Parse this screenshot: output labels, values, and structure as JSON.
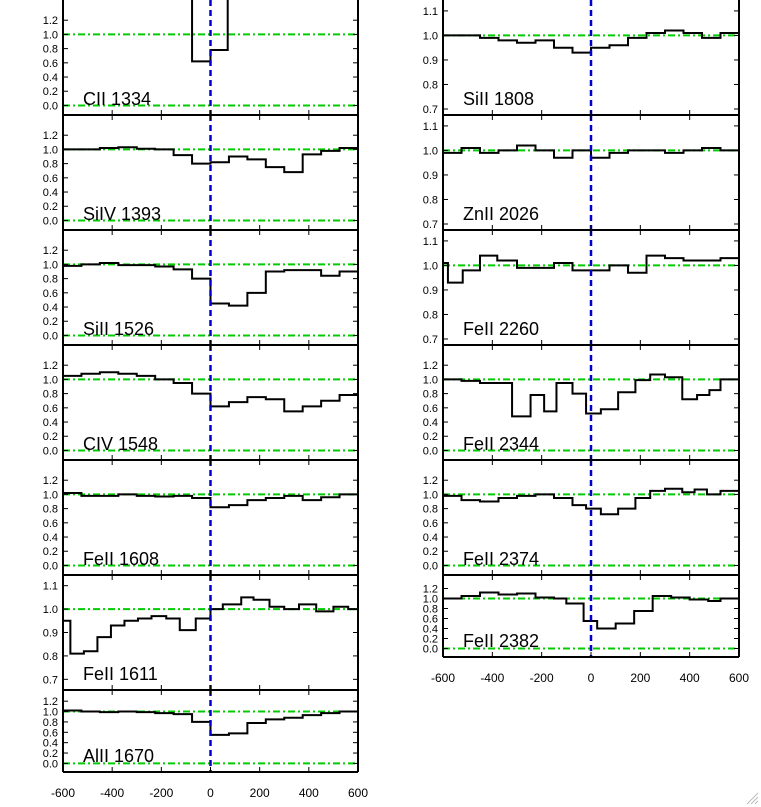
{
  "chart_data": {
    "type": "line",
    "style": {
      "spectrum_color": "#000000",
      "unity_line_color": "#00cc00",
      "zero_line_color": "#00cc00",
      "velocity_zero_color": "#0000cc"
    },
    "x_ticks": [
      "-600",
      "-400",
      "-200",
      "0",
      "200",
      "400",
      "600"
    ],
    "xlim": [
      -600,
      600
    ],
    "columns": [
      {
        "panels": [
          {
            "label": "CII 1334",
            "ylim": [
              -0.05,
              1.4
            ],
            "yticks": [
              "0.0",
              "0.2",
              "0.4",
              "0.6",
              "0.8",
              "1.0",
              "1.2"
            ],
            "unity": 1.0,
            "zero": 0.0,
            "x": [
              -75,
              -75,
              0,
              0,
              70,
              70
            ],
            "y": [
              1.5,
              0.62,
              0.62,
              0.78,
              0.78,
              1.5
            ]
          },
          {
            "label": "SiIV 1393",
            "ylim": [
              -0.05,
              1.4
            ],
            "yticks": [
              "0.0",
              "0.2",
              "0.4",
              "0.6",
              "0.8",
              "1.0",
              "1.2"
            ],
            "unity": 1.0,
            "zero": 0.0,
            "x": [
              -600,
              -525,
              -450,
              -375,
              -300,
              -225,
              -150,
              -75,
              0,
              75,
              150,
              225,
              300,
              375,
              450,
              525
            ],
            "y": [
              1.0,
              1.0,
              1.02,
              1.03,
              1.01,
              1.0,
              0.92,
              0.8,
              0.82,
              0.9,
              0.86,
              0.75,
              0.68,
              0.93,
              0.98,
              1.02
            ]
          },
          {
            "label": "SiII 1526",
            "ylim": [
              -0.05,
              1.4
            ],
            "yticks": [
              "0.0",
              "0.2",
              "0.4",
              "0.6",
              "0.8",
              "1.0",
              "1.2"
            ],
            "unity": 1.0,
            "zero": 0.0,
            "x": [
              -600,
              -525,
              -450,
              -375,
              -300,
              -225,
              -150,
              -75,
              0,
              75,
              150,
              225,
              300,
              375,
              450,
              525
            ],
            "y": [
              0.98,
              1.0,
              1.02,
              0.99,
              0.99,
              0.97,
              0.93,
              0.8,
              0.45,
              0.42,
              0.6,
              0.9,
              0.92,
              0.92,
              0.84,
              0.9
            ]
          },
          {
            "label": "CIV 1548",
            "ylim": [
              -0.05,
              1.4
            ],
            "yticks": [
              "0.0",
              "0.2",
              "0.4",
              "0.6",
              "0.8",
              "1.0",
              "1.2"
            ],
            "unity": 1.0,
            "zero": 0.0,
            "x": [
              -600,
              -525,
              -450,
              -375,
              -300,
              -225,
              -150,
              -75,
              0,
              75,
              150,
              225,
              300,
              375,
              450,
              525
            ],
            "y": [
              1.05,
              1.08,
              1.1,
              1.08,
              1.05,
              1.0,
              0.95,
              0.8,
              0.62,
              0.68,
              0.75,
              0.72,
              0.55,
              0.62,
              0.7,
              0.78
            ]
          },
          {
            "label": "FeII 1608",
            "ylim": [
              -0.05,
              1.4
            ],
            "yticks": [
              "0.0",
              "0.2",
              "0.4",
              "0.6",
              "0.8",
              "1.0",
              "1.2"
            ],
            "unity": 1.0,
            "zero": 0.0,
            "x": [
              -600,
              -525,
              -450,
              -375,
              -300,
              -225,
              -150,
              -75,
              0,
              75,
              150,
              225,
              300,
              375,
              450,
              525
            ],
            "y": [
              1.02,
              0.98,
              0.98,
              1.0,
              0.98,
              0.97,
              0.98,
              0.95,
              0.82,
              0.85,
              0.92,
              0.95,
              0.98,
              0.92,
              0.96,
              1.0
            ]
          },
          {
            "label": "FeII 1611",
            "ylim": [
              0.68,
              1.12
            ],
            "yticks": [
              "0.7",
              "0.8",
              "0.9",
              "1.0",
              "1.1"
            ],
            "unity": 1.0,
            "x": [
              -600,
              -570,
              -515,
              -460,
              -405,
              -350,
              -295,
              -240,
              -180,
              -125,
              -60,
              0,
              50,
              125,
              175,
              240,
              300,
              360,
              430,
              500,
              560
            ],
            "y": [
              0.95,
              0.81,
              0.82,
              0.88,
              0.93,
              0.95,
              0.96,
              0.97,
              0.96,
              0.91,
              0.96,
              1.0,
              1.02,
              1.05,
              1.04,
              1.01,
              1.0,
              1.02,
              0.99,
              1.01,
              1.0
            ]
          },
          {
            "label": "AlII 1670",
            "ylim": [
              -0.05,
              1.3
            ],
            "yticks": [
              "0.0",
              "0.2",
              "0.4",
              "0.6",
              "0.8",
              "1.0",
              "1.2"
            ],
            "unity": 1.0,
            "zero": 0.0,
            "x": [
              -600,
              -525,
              -450,
              -375,
              -300,
              -225,
              -150,
              -75,
              0,
              75,
              150,
              225,
              300,
              375,
              450,
              525
            ],
            "y": [
              1.02,
              1.0,
              0.99,
              1.0,
              0.99,
              0.97,
              0.95,
              0.8,
              0.55,
              0.58,
              0.78,
              0.85,
              0.88,
              0.93,
              0.97,
              1.0
            ]
          }
        ]
      },
      {
        "panels": [
          {
            "label": "SiII 1808",
            "ylim": [
              0.7,
              1.12
            ],
            "yticks": [
              "0.7",
              "0.8",
              "0.9",
              "1.0",
              "1.1"
            ],
            "unity": 1.0,
            "x": [
              -600,
              -525,
              -450,
              -375,
              -300,
              -225,
              -150,
              -75,
              0,
              75,
              150,
              225,
              300,
              375,
              450,
              525
            ],
            "y": [
              1.0,
              1.0,
              0.99,
              0.98,
              0.97,
              0.98,
              0.95,
              0.93,
              0.95,
              0.96,
              0.99,
              1.01,
              1.02,
              1.01,
              0.99,
              1.01
            ]
          },
          {
            "label": "ZnII 2026",
            "ylim": [
              0.7,
              1.12
            ],
            "yticks": [
              "0.7",
              "0.8",
              "0.9",
              "1.0",
              "1.1"
            ],
            "unity": 1.0,
            "x": [
              -600,
              -525,
              -450,
              -375,
              -300,
              -225,
              -150,
              -75,
              0,
              75,
              150,
              225,
              300,
              375,
              450,
              525
            ],
            "y": [
              0.99,
              1.01,
              0.99,
              1.0,
              1.02,
              1.0,
              0.97,
              1.0,
              0.97,
              0.99,
              1.0,
              1.0,
              0.99,
              1.0,
              1.01,
              1.0
            ]
          },
          {
            "label": "FeII 2260",
            "ylim": [
              0.7,
              1.12
            ],
            "yticks": [
              "0.7",
              "0.8",
              "0.9",
              "1.0",
              "1.1"
            ],
            "unity": 1.0,
            "x": [
              -600,
              -580,
              -520,
              -450,
              -380,
              -300,
              -225,
              -150,
              -75,
              0,
              75,
              150,
              225,
              300,
              375,
              450,
              525
            ],
            "y": [
              1.01,
              0.93,
              0.98,
              1.04,
              1.02,
              0.99,
              0.99,
              1.01,
              0.98,
              0.98,
              1.0,
              0.97,
              1.04,
              1.03,
              1.02,
              1.02,
              1.03
            ]
          },
          {
            "label": "FeII 2344",
            "ylim": [
              -0.05,
              1.4
            ],
            "yticks": [
              "0.0",
              "0.2",
              "0.4",
              "0.6",
              "0.8",
              "1.0",
              "1.2"
            ],
            "unity": 1.0,
            "zero": 0.0,
            "x": [
              -600,
              -525,
              -450,
              -375,
              -320,
              -245,
              -190,
              -140,
              -75,
              -20,
              40,
              110,
              180,
              240,
              300,
              370,
              430,
              480,
              525
            ],
            "y": [
              1.0,
              0.98,
              0.95,
              0.95,
              0.48,
              0.78,
              0.55,
              0.95,
              0.8,
              0.52,
              0.58,
              0.82,
              0.99,
              1.07,
              1.03,
              0.72,
              0.78,
              0.85,
              1.0
            ]
          },
          {
            "label": "FeII 2374",
            "ylim": [
              -0.05,
              1.4
            ],
            "yticks": [
              "0.0",
              "0.2",
              "0.4",
              "0.6",
              "0.8",
              "1.0",
              "1.2"
            ],
            "unity": 1.0,
            "zero": 0.0,
            "x": [
              -600,
              -525,
              -450,
              -375,
              -300,
              -225,
              -150,
              -75,
              -20,
              40,
              110,
              180,
              240,
              300,
              370,
              420,
              470,
              525
            ],
            "y": [
              0.98,
              0.92,
              0.9,
              0.95,
              0.98,
              1.0,
              0.95,
              0.85,
              0.8,
              0.72,
              0.8,
              0.95,
              1.05,
              1.08,
              1.03,
              1.07,
              1.0,
              1.05
            ]
          },
          {
            "label": "FeII 2382",
            "ylim": [
              -0.05,
              1.35
            ],
            "yticks": [
              "0.0",
              "0.2",
              "0.4",
              "0.6",
              "0.8",
              "1.0",
              "1.2"
            ],
            "unity": 1.0,
            "zero": 0.0,
            "x": [
              -600,
              -525,
              -450,
              -375,
              -300,
              -225,
              -150,
              -100,
              -30,
              25,
              100,
              175,
              250,
              325,
              400,
              475,
              525
            ],
            "y": [
              1.0,
              1.05,
              1.12,
              1.08,
              1.1,
              1.02,
              1.0,
              0.9,
              0.55,
              0.4,
              0.5,
              0.75,
              1.05,
              1.02,
              0.98,
              0.95,
              1.0
            ]
          }
        ]
      }
    ]
  }
}
